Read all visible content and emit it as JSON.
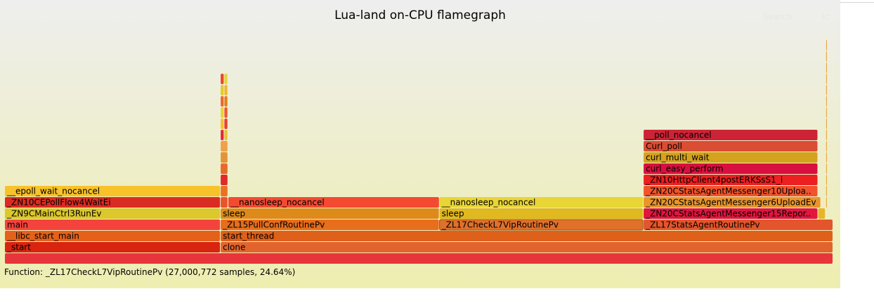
{
  "title": "Lua-land on-CPU flamegraph",
  "search_label": "Search",
  "ic_label": "ic",
  "details": "Function: _ZL17CheckL7VipRoutinePv (27,000,772 samples, 24.64%)",
  "chart_data": {
    "type": "flamegraph",
    "total_samples": 109581000,
    "frames": [
      {
        "name": "",
        "start": 0,
        "width": 1.0,
        "depth": 0,
        "color": "#e8353b"
      },
      {
        "name": "_start",
        "start": 0,
        "width": 0.2605,
        "depth": 1,
        "color": "#d9240f"
      },
      {
        "name": "clone",
        "start": 0.2605,
        "width": 0.7395,
        "depth": 1,
        "color": "#e2642c"
      },
      {
        "name": "__libc_start_main",
        "start": 0,
        "width": 0.2605,
        "depth": 2,
        "color": "#e5611a"
      },
      {
        "name": "start_thread",
        "start": 0.2605,
        "width": 0.7395,
        "depth": 2,
        "color": "#df6019"
      },
      {
        "name": "main",
        "start": 0,
        "width": 0.2605,
        "depth": 3,
        "color": "#f4433c"
      },
      {
        "name": "_ZL15PullConfRoutinePv",
        "start": 0.2605,
        "width": 0.2642,
        "depth": 3,
        "color": "#e66e1c"
      },
      {
        "name": "_ZL17CheckL7VipRoutinePv",
        "start": 0.5247,
        "width": 0.2464,
        "depth": 3,
        "color": "#e0702a",
        "selected": true
      },
      {
        "name": "_ZL17StatsAgentRoutinePv",
        "start": 0.7711,
        "width": 0.2289,
        "depth": 3,
        "color": "#e3552c"
      },
      {
        "name": "_ZN9CMainCtrl3RunEv",
        "start": 0,
        "width": 0.2605,
        "depth": 4,
        "color": "#dcc72c"
      },
      {
        "name": "sleep",
        "start": 0.2605,
        "width": 0.2642,
        "depth": 4,
        "color": "#dd8a1a"
      },
      {
        "name": "sleep",
        "start": 0.5247,
        "width": 0.2464,
        "depth": 4,
        "color": "#e0b81f"
      },
      {
        "name": "_ZN20CStatsAgentMessenger15Report..",
        "start": 0.7711,
        "width": 0.2107,
        "depth": 4,
        "color": "#e0163e"
      },
      {
        "name": "",
        "start": 0.9818,
        "width": 0.0091,
        "depth": 4,
        "color": "#e8b529"
      },
      {
        "name": "_ZN10CEPollFlow4WaitEi",
        "start": 0,
        "width": 0.2605,
        "depth": 5,
        "color": "#d92c22"
      },
      {
        "name": "",
        "start": 0.2605,
        "width": 0.0091,
        "depth": 5,
        "color": "#e8542c"
      },
      {
        "name": "__nanosleep_nocancel",
        "start": 0.2697,
        "width": 0.2551,
        "depth": 5,
        "color": "#f44a31"
      },
      {
        "name": "__nanosleep_nocancel",
        "start": 0.5247,
        "width": 0.2464,
        "depth": 5,
        "color": "#e8d536"
      },
      {
        "name": "_ZN20CStatsAgentMessenger6UploadEv",
        "start": 0.7711,
        "width": 0.2142,
        "depth": 5,
        "color": "#e8952c"
      },
      {
        "name": "__epoll_wait_nocancel",
        "start": 0,
        "width": 0.2605,
        "depth": 6,
        "color": "#f8c22a"
      },
      {
        "name": "",
        "start": 0.2605,
        "width": 0.0091,
        "depth": 6,
        "color": "#eb7122"
      },
      {
        "name": "_ZN20CStatsAgentMessenger10Upload..",
        "start": 0.7711,
        "width": 0.2107,
        "depth": 6,
        "color": "#f1542c"
      },
      {
        "name": "_ZN10HttpClient4postERKSsS1_i",
        "start": 0.7711,
        "width": 0.2107,
        "depth": 7,
        "color": "#ec1f21"
      },
      {
        "name": "",
        "start": 0.2605,
        "width": 0.0091,
        "depth": 7,
        "color": "#e22a2a"
      },
      {
        "name": "curl_easy_perform",
        "start": 0.7711,
        "width": 0.2107,
        "depth": 8,
        "color": "#d9103f"
      },
      {
        "name": "",
        "start": 0.2605,
        "width": 0.0091,
        "depth": 8,
        "color": "#e86a2b"
      },
      {
        "name": "curl_multi_wait",
        "start": 0.7711,
        "width": 0.2107,
        "depth": 9,
        "color": "#d4a21d"
      },
      {
        "name": "",
        "start": 0.2605,
        "width": 0.0091,
        "depth": 9,
        "color": "#e2943a"
      },
      {
        "name": "Curl_poll",
        "start": 0.7711,
        "width": 0.2107,
        "depth": 10,
        "color": "#d94d33"
      },
      {
        "name": "",
        "start": 0.2605,
        "width": 0.0091,
        "depth": 10,
        "color": "#f0a04a"
      },
      {
        "name": "__poll_nocancel",
        "start": 0.7711,
        "width": 0.2107,
        "depth": 11,
        "color": "#cc2436"
      },
      {
        "name": "",
        "start": 0.2605,
        "width": 0.0045,
        "depth": 11,
        "color": "#e2283a"
      },
      {
        "name": "",
        "start": 0.265,
        "width": 0.0045,
        "depth": 11,
        "color": "#e8c234"
      },
      {
        "name": "",
        "start": 0.2605,
        "width": 0.0045,
        "depth": 12,
        "color": "#f8c12a"
      },
      {
        "name": "",
        "start": 0.265,
        "width": 0.0045,
        "depth": 12,
        "color": "#ee3d2d"
      },
      {
        "name": "",
        "start": 0.2605,
        "width": 0.0045,
        "depth": 13,
        "color": "#e8d534"
      },
      {
        "name": "",
        "start": 0.265,
        "width": 0.0045,
        "depth": 13,
        "color": "#f0582b"
      },
      {
        "name": "",
        "start": 0.2605,
        "width": 0.0045,
        "depth": 14,
        "color": "#e86a2b"
      },
      {
        "name": "",
        "start": 0.265,
        "width": 0.0045,
        "depth": 14,
        "color": "#e67e1a"
      },
      {
        "name": "",
        "start": 0.2605,
        "width": 0.0045,
        "depth": 15,
        "color": "#dfcc2c"
      },
      {
        "name": "",
        "start": 0.265,
        "width": 0.0045,
        "depth": 15,
        "color": "#f2b82b"
      },
      {
        "name": "",
        "start": 0.2605,
        "width": 0.0045,
        "depth": 16,
        "color": "#e8472b"
      },
      {
        "name": "",
        "start": 0.265,
        "width": 0.0045,
        "depth": 16,
        "color": "#e8d534"
      },
      {
        "name": "",
        "start": 0.9914,
        "width": 0.0008,
        "depth": 5,
        "color": "#e8a02c"
      },
      {
        "name": "",
        "start": 0.9914,
        "width": 0.0008,
        "depth": 6,
        "color": "#e8a02c"
      },
      {
        "name": "",
        "start": 0.9914,
        "width": 0.0008,
        "depth": 7,
        "color": "#e8a02c"
      },
      {
        "name": "",
        "start": 0.9914,
        "width": 0.0008,
        "depth": 8,
        "color": "#e8a02c"
      },
      {
        "name": "",
        "start": 0.9914,
        "width": 0.0008,
        "depth": 9,
        "color": "#e8a02c"
      },
      {
        "name": "",
        "start": 0.9914,
        "width": 0.0008,
        "depth": 10,
        "color": "#e8a02c"
      },
      {
        "name": "",
        "start": 0.9914,
        "width": 0.0008,
        "depth": 11,
        "color": "#e8a02c"
      },
      {
        "name": "",
        "start": 0.9914,
        "width": 0.0008,
        "depth": 12,
        "color": "#e8a02c"
      },
      {
        "name": "",
        "start": 0.9914,
        "width": 0.0008,
        "depth": 13,
        "color": "#e8a02c"
      },
      {
        "name": "",
        "start": 0.9914,
        "width": 0.0008,
        "depth": 14,
        "color": "#e8a02c"
      },
      {
        "name": "",
        "start": 0.9914,
        "width": 0.0008,
        "depth": 15,
        "color": "#e8a02c"
      },
      {
        "name": "",
        "start": 0.9914,
        "width": 0.0008,
        "depth": 16,
        "color": "#e8a02c"
      },
      {
        "name": "",
        "start": 0.9914,
        "width": 0.0008,
        "depth": 17,
        "color": "#e8a02c"
      },
      {
        "name": "",
        "start": 0.9914,
        "width": 0.0008,
        "depth": 18,
        "color": "#e8a02c"
      },
      {
        "name": "",
        "start": 0.9914,
        "width": 0.0008,
        "depth": 19,
        "color": "#e8a02c"
      }
    ]
  }
}
